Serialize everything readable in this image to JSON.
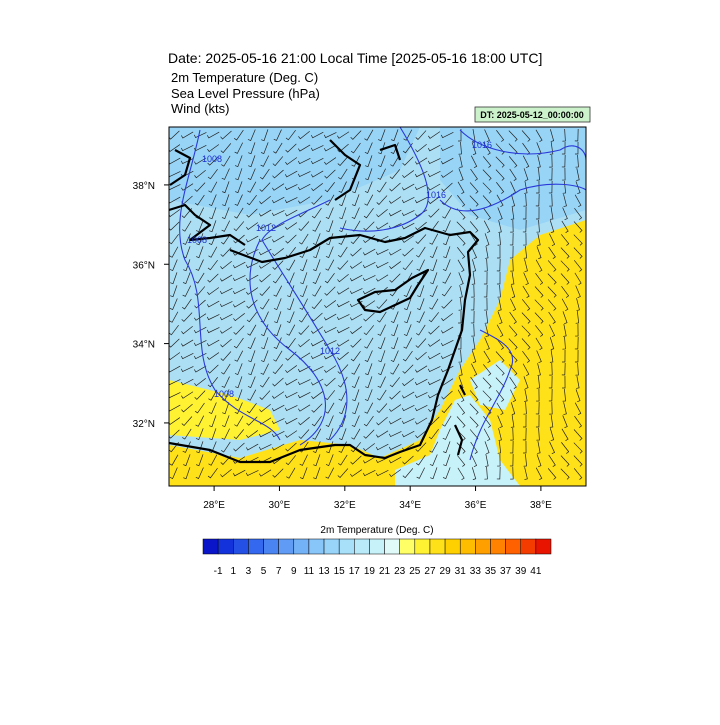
{
  "header": {
    "title": "Date: 2025-05-16  21:00 Local Time [2025-05-16  18:00 UTC]",
    "fields": [
      "2m Temperature (Deg. C)",
      "Sea Level Pressure   (hPa)",
      "Wind   (kts)"
    ],
    "init_time": "DT: 2025-05-12_00:00:00"
  },
  "map": {
    "xlim": [
      26.62,
      39.38
    ],
    "ylim": [
      30.41,
      39.46
    ],
    "xticks": [
      {
        "value": 28,
        "label": "28°E"
      },
      {
        "value": 30,
        "label": "30°E"
      },
      {
        "value": 32,
        "label": "32°E"
      },
      {
        "value": 34,
        "label": "34°E"
      },
      {
        "value": 36,
        "label": "36°E"
      },
      {
        "value": 38,
        "label": "38°E"
      }
    ],
    "yticks": [
      {
        "value": 32,
        "label": "32°N"
      },
      {
        "value": 34,
        "label": "34°N"
      },
      {
        "value": 36,
        "label": "36°N"
      },
      {
        "value": 38,
        "label": "38°N"
      }
    ],
    "contour_labels": [
      "1008",
      "1016",
      "1016",
      "1012",
      "1008",
      "1012",
      "1008"
    ]
  },
  "colorbar": {
    "title": "2m Temperature (Deg. C)",
    "labels": [
      -1,
      1,
      3,
      5,
      7,
      9,
      11,
      13,
      15,
      17,
      19,
      21,
      23,
      25,
      27,
      29,
      31,
      33,
      35,
      37,
      39,
      41
    ],
    "colors": [
      "#0a14c8",
      "#1432dc",
      "#2450e6",
      "#3468ee",
      "#4a84f2",
      "#609cf6",
      "#74b2f8",
      "#88c6fa",
      "#98d4fa",
      "#a8e0fa",
      "#b8eafa",
      "#c8f2fa",
      "#e0fafa",
      "#ffff66",
      "#fff233",
      "#ffe11a",
      "#ffd000",
      "#ffbd00",
      "#ffa000",
      "#ff8200",
      "#ff6000",
      "#f53c00",
      "#e81400"
    ]
  }
}
